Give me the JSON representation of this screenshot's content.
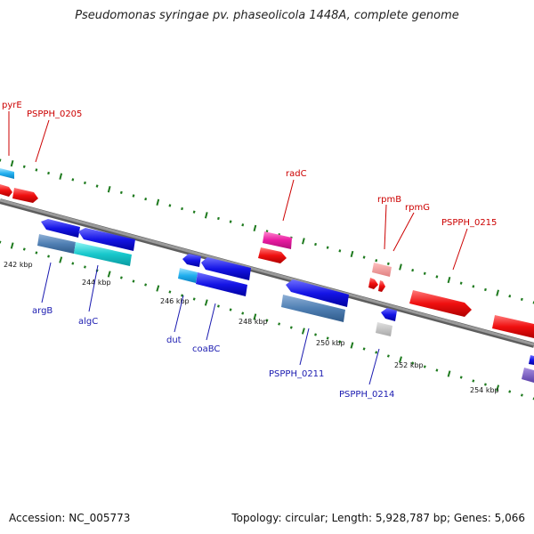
{
  "title": "Pseudomonas syringae pv. phaseolicola 1448A, complete genome",
  "footer": {
    "accession": "Accession: NC_005773",
    "topology": "Topology: circular; Length: 5,928,787 bp; Genes: 5,066"
  },
  "colors": {
    "backbone": "#7a7a7a",
    "tick": "#1e7a1e",
    "label_top": "#cc0000",
    "label_bottom": "#1a1ab0"
  },
  "ticks": [
    "242 kbp",
    "244 kbp",
    "246 kbp",
    "248 kbp",
    "250 kbp",
    "252 kbp",
    "254 kbp"
  ],
  "genes_top": [
    {
      "name": "pyrE"
    },
    {
      "name": "PSPPH_0205"
    },
    {
      "name": "radC"
    },
    {
      "name": "rpmB"
    },
    {
      "name": "rpmG"
    },
    {
      "name": "PSPPH_0215"
    }
  ],
  "genes_bottom": [
    {
      "name": "argB"
    },
    {
      "name": "algC"
    },
    {
      "name": "dut"
    },
    {
      "name": "coaBC"
    },
    {
      "name": "PSPPH_0211"
    },
    {
      "name": "PSPPH_0214"
    }
  ]
}
